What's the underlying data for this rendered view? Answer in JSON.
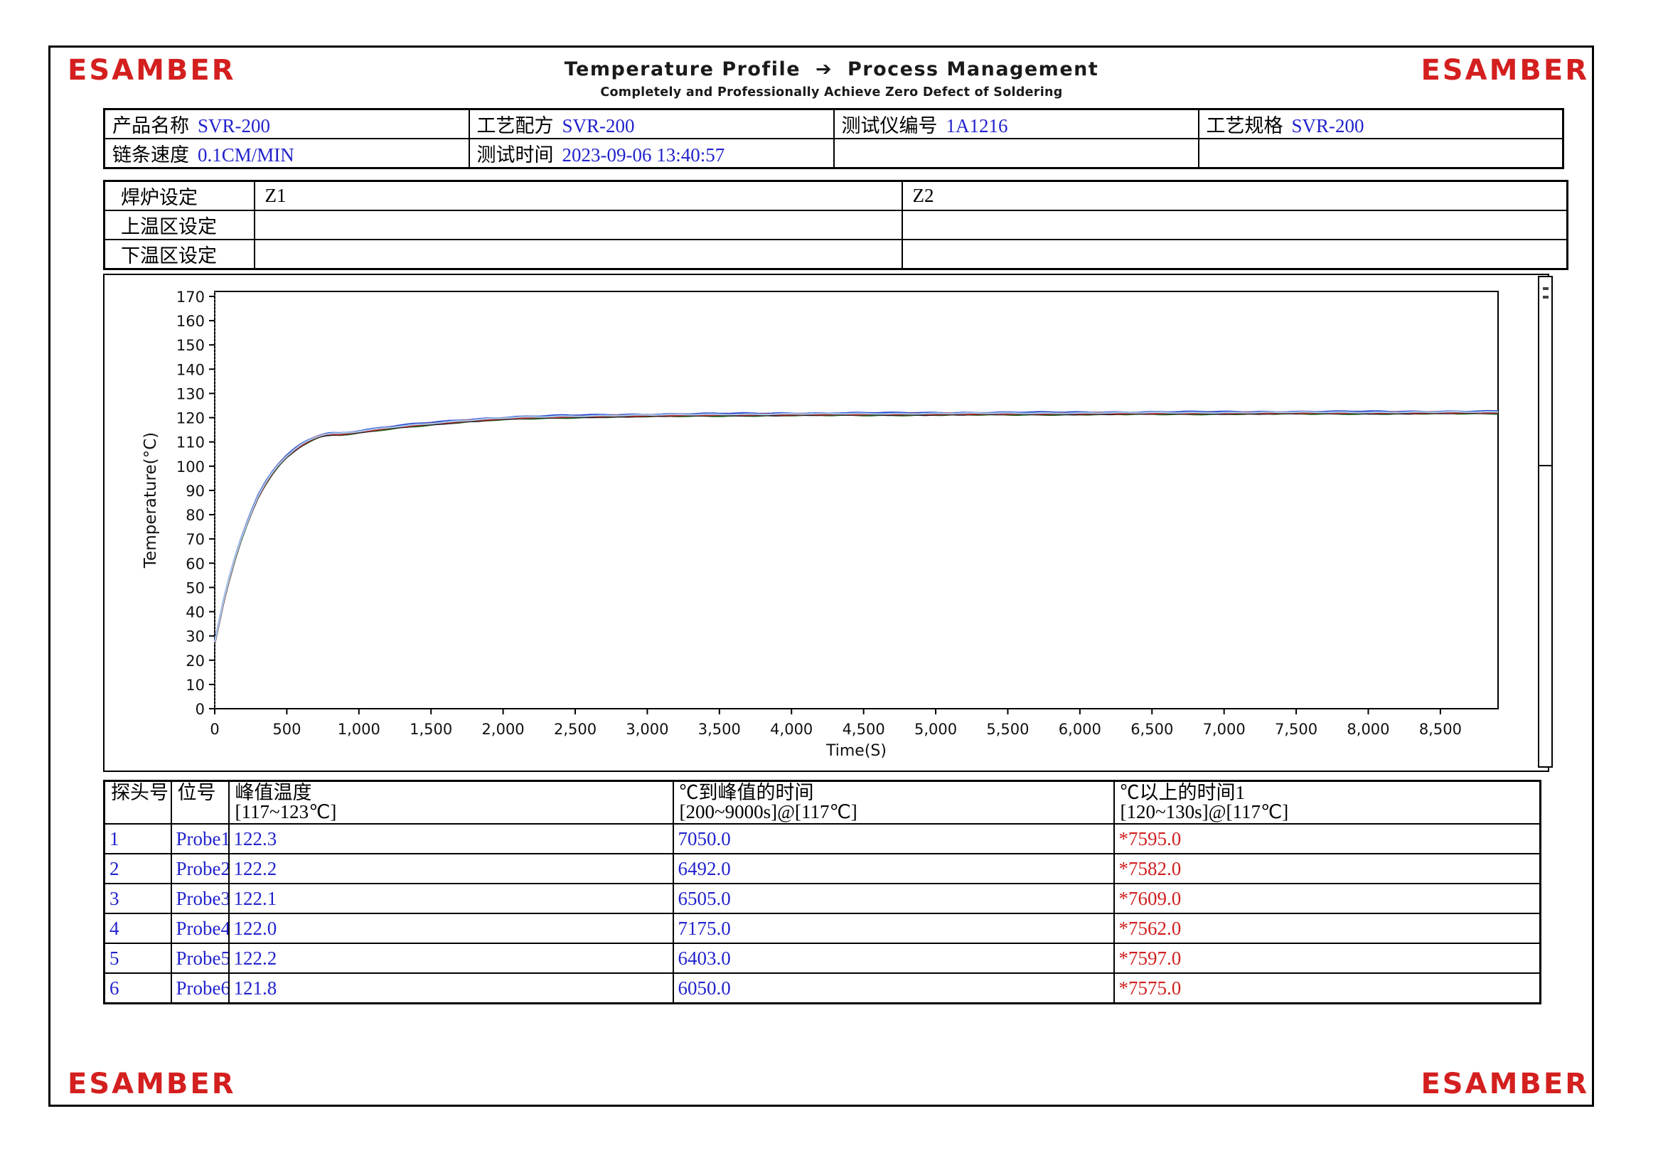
{
  "brand": {
    "logo_text": "ESAMBER",
    "logo_color": "#d41f1f"
  },
  "header": {
    "title_left": "Temperature Profile",
    "title_arrow": "➔",
    "title_right": "Process Management",
    "subtitle": "Completely and Professionally Achieve Zero Defect of Soldering"
  },
  "info_table": {
    "rows": [
      [
        {
          "label": "产品名称",
          "value": "SVR-200"
        },
        {
          "label": "工艺配方",
          "value": "SVR-200"
        },
        {
          "label": "测试仪编号",
          "value": "1A1216"
        },
        {
          "label": "工艺规格",
          "value": "SVR-200"
        }
      ],
      [
        {
          "label": "链条速度",
          "value": "0.1CM/MIN"
        },
        {
          "label": "测试时间",
          "value": "2023-09-06 13:40:57"
        },
        {
          "label": "",
          "value": ""
        },
        {
          "label": "",
          "value": ""
        }
      ]
    ]
  },
  "oven_table": {
    "rows": [
      {
        "label": "焊炉设定",
        "z1": "Z1",
        "z2": "Z2"
      },
      {
        "label": "上温区设定",
        "z1": "",
        "z2": ""
      },
      {
        "label": "下温区设定",
        "z1": "",
        "z2": ""
      }
    ]
  },
  "chart_data": {
    "type": "line",
    "title": "",
    "xlabel": "Time(S)",
    "ylabel": "Temperature(°C)",
    "xlim": [
      0,
      8900
    ],
    "ylim": [
      0,
      170
    ],
    "x_tick_step": 500,
    "x_tick_max": 8500,
    "y_tick_step": 10,
    "grid": false,
    "legend": "none",
    "base_curve": {
      "t": [
        0,
        30,
        60,
        100,
        140,
        180,
        220,
        260,
        300,
        350,
        400,
        450,
        500,
        550,
        600,
        650,
        700,
        740,
        780,
        820,
        860,
        900,
        950,
        1000,
        1100,
        1200,
        1300,
        1400,
        1500,
        1700,
        1900,
        2100,
        2400,
        2700,
        3000,
        3500,
        4000,
        4500,
        5000,
        5500,
        6000,
        6500,
        7000,
        7500,
        8000,
        8500,
        8900
      ],
      "temp": [
        27,
        35,
        43.5,
        53,
        61.5,
        69,
        75.5,
        81.5,
        87,
        92.5,
        97,
        100.8,
        103.8,
        106.3,
        108.4,
        110.1,
        111.5,
        112.3,
        112.8,
        113.0,
        112.9,
        113.1,
        113.4,
        113.8,
        114.6,
        115.4,
        116.1,
        116.7,
        117.2,
        118.2,
        119.0,
        119.6,
        120.1,
        120.4,
        120.6,
        120.9,
        121.05,
        121.15,
        121.25,
        121.35,
        121.45,
        121.55,
        121.65,
        121.7,
        121.75,
        121.8,
        121.85
      ]
    },
    "noise_amp": 0.12,
    "series": [
      {
        "name": "Probe1",
        "color": "#2140cf",
        "offset": 0.8
      },
      {
        "name": "Probe2",
        "color": "#7a1f1f",
        "offset": 0.2
      },
      {
        "name": "Probe3",
        "color": "#1b1b1b",
        "offset": 0.0
      },
      {
        "name": "Probe4",
        "color": "#a6c8e8",
        "offset": 0.5
      },
      {
        "name": "Probe5",
        "color": "#226622",
        "offset": -0.15
      },
      {
        "name": "Probe6",
        "color": "#c03a3a",
        "offset": 0.35
      }
    ],
    "draw_order": [
      4,
      2,
      1,
      0,
      5,
      3
    ]
  },
  "result_table": {
    "headers": [
      {
        "line1": "探头号",
        "line2": ""
      },
      {
        "line1": "位号",
        "line2": ""
      },
      {
        "line1": "峰值温度",
        "line2": "[117~123℃]"
      },
      {
        "line1": "℃到峰值的时间",
        "line2": "[200~9000s]@[117℃]"
      },
      {
        "line1": "℃以上的时间1",
        "line2": "[120~130s]@[117℃]"
      }
    ],
    "rows": [
      [
        "1",
        "Probe1",
        "122.3",
        "7050.0",
        "*7595.0"
      ],
      [
        "2",
        "Probe2",
        "122.2",
        "6492.0",
        "*7582.0"
      ],
      [
        "3",
        "Probe3",
        "122.1",
        "6505.0",
        "*7609.0"
      ],
      [
        "4",
        "Probe4",
        "122.0",
        "7175.0",
        "*7562.0"
      ],
      [
        "5",
        "Probe5",
        "122.2",
        "6403.0",
        "*7597.0"
      ],
      [
        "6",
        "Probe6",
        "121.8",
        "6050.0",
        "*7575.0"
      ]
    ]
  },
  "colors": {
    "value_text": "#2323cd",
    "alert_text": "#d02020",
    "table_border": "#000000",
    "logo_red": "#d41f1f"
  }
}
